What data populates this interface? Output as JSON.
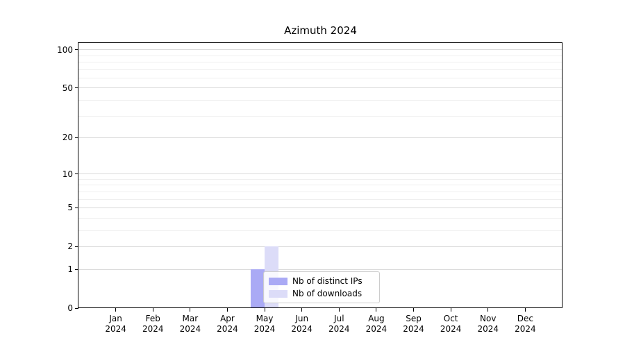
{
  "chart_data": {
    "type": "bar",
    "title": "Azimuth 2024",
    "categories": [
      "Jan 2024",
      "Feb 2024",
      "Mar 2024",
      "Apr 2024",
      "May 2024",
      "Jun 2024",
      "Jul 2024",
      "Aug 2024",
      "Sep 2024",
      "Oct 2024",
      "Nov 2024",
      "Dec 2024"
    ],
    "x_tick_months": [
      "Jan",
      "Feb",
      "Mar",
      "Apr",
      "May",
      "Jun",
      "Jul",
      "Aug",
      "Sep",
      "Oct",
      "Nov",
      "Dec"
    ],
    "x_tick_year": "2024",
    "series": [
      {
        "name": "Nb of distinct IPs",
        "color": "#aaaaf5",
        "values": [
          0,
          0,
          0,
          0,
          1,
          0,
          0,
          0,
          0,
          0,
          0,
          0
        ]
      },
      {
        "name": "Nb of downloads",
        "color": "#dcdcf8",
        "values": [
          0,
          0,
          0,
          0,
          2,
          0,
          0,
          0,
          0,
          0,
          0,
          0
        ]
      }
    ],
    "xlabel": "",
    "ylabel": "",
    "yscale": "log1p",
    "ylim": [
      0,
      113
    ],
    "y_major_ticks": [
      0,
      1,
      2,
      5,
      10,
      20,
      50,
      100
    ],
    "y_minor_ticks": [
      3,
      4,
      6,
      7,
      8,
      9,
      30,
      40,
      60,
      70,
      80,
      90
    ],
    "grid": "horizontal-only",
    "legend_position": "inside-lower-center",
    "colors": {
      "background": "#ffffff",
      "spine": "#000000",
      "grid_major": "#d9d9d9",
      "grid_minor": "#efefef",
      "text": "#000000",
      "legend_border": "#cccccc",
      "legend_bg": "rgba(255,255,255,0.8)"
    }
  }
}
